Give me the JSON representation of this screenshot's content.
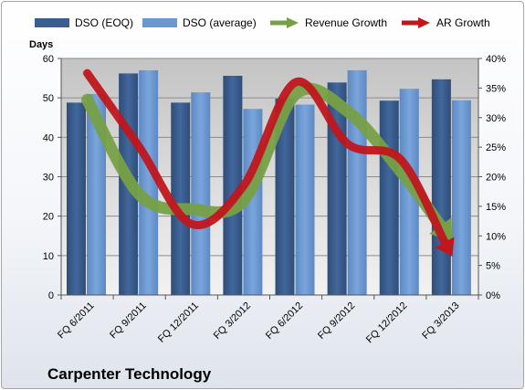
{
  "chart_data": {
    "type": "bar",
    "title": "Carpenter Technology",
    "ylabel": "Days",
    "xlabel": "",
    "categories": [
      "FQ 6/2011",
      "FQ 9/2011",
      "FQ 12/2011",
      "FQ 3/2012",
      "FQ 6/2012",
      "FQ 9/2012",
      "FQ 12/2012",
      "FQ 3/2013"
    ],
    "ylim": [
      0,
      60
    ],
    "y_ticks": [
      0,
      10,
      20,
      30,
      40,
      50,
      60
    ],
    "y2lim": [
      0,
      40
    ],
    "y2_ticks": [
      "0%",
      "5%",
      "10%",
      "15%",
      "20%",
      "25%",
      "30%",
      "35%",
      "40%"
    ],
    "grid": true,
    "legend_position": "top",
    "series": [
      {
        "name": "DSO (EOQ)",
        "kind": "bar",
        "axis": "left",
        "color": "#3a5d90",
        "values": [
          48.8,
          56.2,
          48.8,
          55.6,
          49.8,
          53.9,
          49.3,
          54.7
        ]
      },
      {
        "name": "DSO (average)",
        "kind": "bar",
        "axis": "left",
        "color": "#6b97d1",
        "values": [
          51.0,
          57.0,
          51.4,
          47.2,
          48.3,
          57.0,
          52.3,
          49.4
        ]
      },
      {
        "name": "Revenue Growth",
        "kind": "arrow-line",
        "axis": "right",
        "color": "#77a046",
        "values_percent": [
          33.0,
          17.0,
          14.5,
          16.0,
          34.0,
          31.0,
          21.0,
          9.0
        ]
      },
      {
        "name": "AR Growth",
        "kind": "arrow-line",
        "axis": "right",
        "color": "#c0161c",
        "values_percent": [
          37.5,
          25.0,
          12.0,
          18.5,
          36.0,
          25.5,
          23.0,
          6.5
        ]
      }
    ]
  }
}
